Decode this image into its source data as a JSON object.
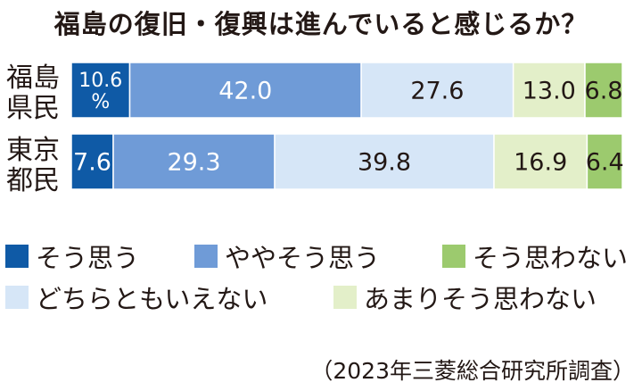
{
  "chart_data": {
    "type": "bar",
    "orientation": "horizontal",
    "stacked": true,
    "title": "福島の復旧・復興は進んでいると感じるか？",
    "categories": [
      "福島\n県民",
      "東京\n都民"
    ],
    "series": [
      {
        "name": "そう思う",
        "color": "#0f5aa6",
        "text_color": "#ffffff",
        "values": [
          10.6,
          7.6
        ],
        "labels": [
          "10.6\n%",
          "7.6"
        ]
      },
      {
        "name": "ややそう思う",
        "color": "#6f9bd7",
        "text_color": "#ffffff",
        "values": [
          42.0,
          29.3
        ],
        "labels": [
          "42.0",
          "29.3"
        ]
      },
      {
        "name": "どちらともいえない",
        "color": "#d6e6f7",
        "text_color": "#231815",
        "values": [
          27.6,
          39.8
        ],
        "labels": [
          "27.6",
          "39.8"
        ]
      },
      {
        "name": "あまりそう思わない",
        "color": "#e3efc9",
        "text_color": "#231815",
        "values": [
          13.0,
          16.9
        ],
        "labels": [
          "13.0",
          "16.9"
        ]
      },
      {
        "name": "そう思わない",
        "color": "#9cca6e",
        "text_color": "#231815",
        "values": [
          6.8,
          6.4
        ],
        "labels": [
          "6.8",
          "6.4"
        ]
      }
    ],
    "xlim": [
      0,
      100
    ],
    "grid": false,
    "legend_position": "bottom",
    "source": "（2023年三菱総合研究所調査）"
  }
}
